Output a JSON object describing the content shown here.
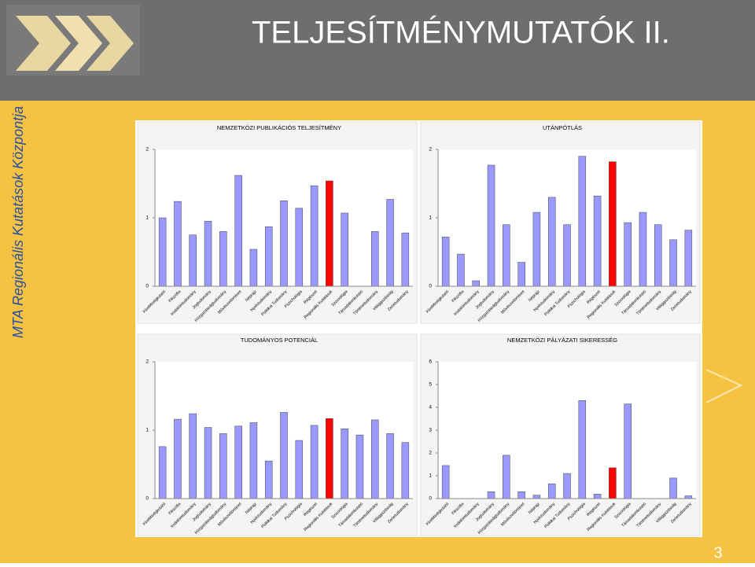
{
  "slide": {
    "title": "TELJESÍTMÉNYMUTATÓK II.",
    "side_text": "MTA Regionális Kutatások Központja",
    "page_number": "3"
  },
  "chart_data": [
    {
      "type": "bar",
      "title": "NEMZETKÖZI PUBLIKÁCIÓS TELJESÍTMÉNY",
      "categories": [
        "Kisebbségkutató",
        "Filozófia",
        "Irodalomtudomány",
        "Jogtudomány",
        "Közgazdaságtudomány",
        "Művészettörténet",
        "Néprajz",
        "Nyelvtudomány",
        "Politikai Tudomány",
        "Pszichológia",
        "Régészet",
        "Regionális Kutatások",
        "Szociológia",
        "Társadalomkutató",
        "Történettudomány",
        "Világgazdaság",
        "Zenetudomány"
      ],
      "values": [
        1.0,
        1.24,
        0.75,
        0.95,
        0.8,
        1.62,
        0.54,
        0.87,
        1.25,
        1.14,
        1.47,
        1.54,
        1.07,
        null,
        0.8,
        1.27,
        0.78
      ],
      "colors": [
        "#9999ff",
        "#9999ff",
        "#9999ff",
        "#9999ff",
        "#9999ff",
        "#9999ff",
        "#9999ff",
        "#9999ff",
        "#9999ff",
        "#9999ff",
        "#9999ff",
        "#ff0000",
        "#9999ff",
        "#9999ff",
        "#9999ff",
        "#9999ff",
        "#9999ff"
      ],
      "ylim": [
        0,
        2
      ],
      "yticks": [
        0,
        1,
        2
      ]
    },
    {
      "type": "bar",
      "title": "UTÁNPÓTLÁS",
      "categories": [
        "Kisebbségkutató",
        "Filozófia",
        "Irodalomtudomány",
        "Jogtudomány",
        "Közgazdaságtudomány",
        "Művészettörténet",
        "Néprajz",
        "Nyelvtudomány",
        "Politikai Tudomány",
        "Pszichológia",
        "Régészet",
        "Regionális Kutatások",
        "Szociológia",
        "Társadalomkutató",
        "Történettudomány",
        "Világgazdaság",
        "Zenetudomány"
      ],
      "values": [
        0.72,
        0.47,
        0.08,
        1.77,
        0.9,
        0.35,
        1.08,
        1.3,
        0.9,
        1.9,
        1.32,
        1.82,
        0.93,
        1.08,
        0.9,
        0.68,
        0.82
      ],
      "colors": [
        "#9999ff",
        "#9999ff",
        "#9999ff",
        "#9999ff",
        "#9999ff",
        "#9999ff",
        "#9999ff",
        "#9999ff",
        "#9999ff",
        "#9999ff",
        "#9999ff",
        "#ff0000",
        "#9999ff",
        "#9999ff",
        "#9999ff",
        "#9999ff",
        "#9999ff"
      ],
      "ylim": [
        0,
        2
      ],
      "yticks": [
        0,
        1,
        2
      ]
    },
    {
      "type": "bar",
      "title": "TUDOMÁNYOS POTENCIÁL",
      "categories": [
        "Kisebbségkutató",
        "Filozófia",
        "Irodalomtudomány",
        "Jogtudomány",
        "Közgazdaságtudomány",
        "Művészettörténet",
        "Néprajz",
        "Nyelvtudomány",
        "Politikai Tudomány",
        "Pszichológia",
        "Régészet",
        "Regionális Kutatások",
        "Szociológia",
        "Társadalomkutató",
        "Történettudomány",
        "Világgazdaság",
        "Zenetudomány"
      ],
      "values": [
        0.76,
        1.16,
        1.24,
        1.04,
        0.95,
        1.06,
        1.11,
        0.55,
        1.26,
        0.85,
        1.07,
        1.17,
        1.02,
        0.93,
        1.15,
        0.95,
        0.82
      ],
      "colors": [
        "#9999ff",
        "#9999ff",
        "#9999ff",
        "#9999ff",
        "#9999ff",
        "#9999ff",
        "#9999ff",
        "#9999ff",
        "#9999ff",
        "#9999ff",
        "#9999ff",
        "#ff0000",
        "#9999ff",
        "#9999ff",
        "#9999ff",
        "#9999ff",
        "#9999ff"
      ],
      "ylim": [
        0,
        2
      ],
      "yticks": [
        0,
        1,
        2
      ]
    },
    {
      "type": "bar",
      "title": "NEMZETKÖZI PÁLYÁZATI SIKERESSÉG",
      "categories": [
        "Kisebbségkutató",
        "Filozófia",
        "Irodalomtudomány",
        "Jogtudomány",
        "Közgazdaságtudomány",
        "Művészettörténet",
        "Néprajz",
        "Nyelvtudomány",
        "Politikai Tudomány",
        "Pszichológia",
        "Régészet",
        "Regionális Kutatások",
        "Szociológia",
        "Társadalomkutató",
        "Történettudomány",
        "Világgazdaság",
        "Zenetudomány"
      ],
      "values": [
        1.45,
        null,
        null,
        0.3,
        1.9,
        0.3,
        0.15,
        0.65,
        1.1,
        4.3,
        0.2,
        1.35,
        4.15,
        null,
        null,
        0.9,
        0.12
      ],
      "colors": [
        "#9999ff",
        "#9999ff",
        "#9999ff",
        "#9999ff",
        "#9999ff",
        "#9999ff",
        "#9999ff",
        "#9999ff",
        "#9999ff",
        "#9999ff",
        "#9999ff",
        "#ff0000",
        "#9999ff",
        "#9999ff",
        "#9999ff",
        "#9999ff",
        "#9999ff"
      ],
      "ylim": [
        0,
        6
      ],
      "yticks": [
        0,
        1,
        2,
        3,
        4,
        5,
        6
      ]
    }
  ]
}
